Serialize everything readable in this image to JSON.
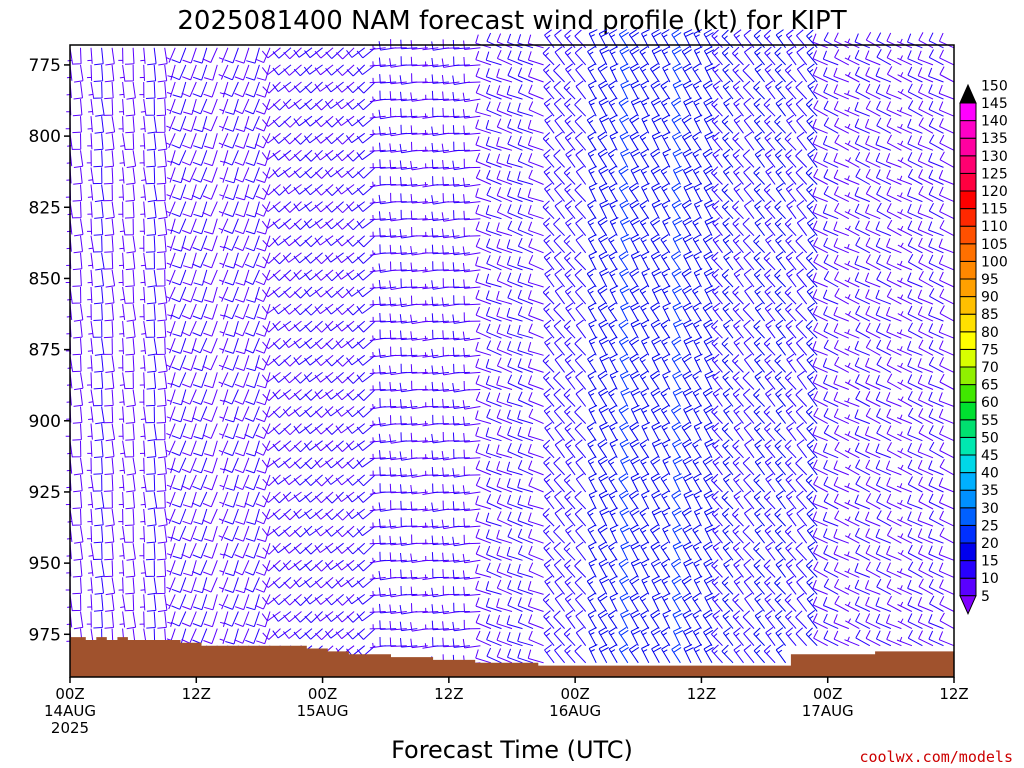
{
  "chart_data": {
    "type": "wind-barb-time-height",
    "title": "2025081400 NAM forecast wind profile (kt) for KIPT",
    "xlabel": "Forecast Time (UTC)",
    "credit": "coolwx.com/models",
    "y_axis": {
      "unit": "hPa",
      "range": [
        768,
        990
      ],
      "ticks": [
        775,
        800,
        825,
        850,
        875,
        900,
        925,
        950,
        975
      ]
    },
    "x_axis": {
      "unit": "forecast hour",
      "range": [
        0,
        84
      ],
      "ticks": [
        {
          "hour": 0,
          "lines": [
            "00Z",
            "14AUG",
            "2025"
          ]
        },
        {
          "hour": 12,
          "lines": [
            "12Z"
          ]
        },
        {
          "hour": 24,
          "lines": [
            "00Z",
            "15AUG"
          ]
        },
        {
          "hour": 36,
          "lines": [
            "12Z"
          ]
        },
        {
          "hour": 48,
          "lines": [
            "00Z",
            "16AUG"
          ]
        },
        {
          "hour": 60,
          "lines": [
            "12Z"
          ]
        },
        {
          "hour": 72,
          "lines": [
            "00Z",
            "17AUG"
          ]
        },
        {
          "hour": 84,
          "lines": [
            "12Z"
          ]
        }
      ]
    },
    "surface_pressure": [
      {
        "hour": 0,
        "p": 976
      },
      {
        "hour": 1.5,
        "p": 977
      },
      {
        "hour": 2.5,
        "p": 976
      },
      {
        "hour": 3.5,
        "p": 977
      },
      {
        "hour": 4.5,
        "p": 976
      },
      {
        "hour": 5.5,
        "p": 977
      },
      {
        "hour": 10.5,
        "p": 978
      },
      {
        "hour": 12.5,
        "p": 979
      },
      {
        "hour": 22.5,
        "p": 980
      },
      {
        "hour": 24.5,
        "p": 981
      },
      {
        "hour": 26.5,
        "p": 982
      },
      {
        "hour": 30.5,
        "p": 983
      },
      {
        "hour": 34.5,
        "p": 984
      },
      {
        "hour": 38.5,
        "p": 985
      },
      {
        "hour": 44.5,
        "p": 986
      },
      {
        "hour": 68.5,
        "p": 982
      },
      {
        "hour": 76.5,
        "p": 981
      },
      {
        "hour": 84,
        "p": 981
      }
    ],
    "colorbar": {
      "levels": [
        5,
        10,
        15,
        20,
        25,
        30,
        35,
        40,
        45,
        50,
        55,
        60,
        65,
        70,
        75,
        80,
        85,
        90,
        95,
        100,
        105,
        110,
        115,
        120,
        125,
        130,
        135,
        140,
        145,
        150
      ],
      "colors": [
        "#8000ff",
        "#5a00ff",
        "#2800ff",
        "#0000ee",
        "#0030ff",
        "#0060ff",
        "#0090ff",
        "#00b0ff",
        "#00d8e8",
        "#00e8b0",
        "#00e070",
        "#00e030",
        "#40e800",
        "#90f000",
        "#d8ff00",
        "#ffff00",
        "#ffe000",
        "#ffc000",
        "#ffa000",
        "#ff8800",
        "#ff7000",
        "#ff5000",
        "#ff2800",
        "#ff0000",
        "#ff0040",
        "#ff0070",
        "#ff00a0",
        "#ff00c8",
        "#ff00ff",
        "#000000"
      ]
    },
    "barbs": {
      "hour_step": 1,
      "levels": [
        769,
        775,
        781,
        787,
        793,
        799,
        805,
        811,
        817,
        823,
        829,
        835,
        841,
        847,
        853,
        859,
        865,
        871,
        877,
        883,
        889,
        895,
        901,
        907,
        913,
        919,
        925,
        931,
        937,
        943,
        949,
        955,
        961,
        967,
        973,
        979,
        985
      ],
      "regimes": [
        {
          "from_hour": 0,
          "to_hour": 10,
          "direction": 175,
          "speed": 8
        },
        {
          "from_hour": 10,
          "to_hour": 20,
          "direction": 200,
          "speed": 9
        },
        {
          "from_hour": 20,
          "to_hour": 30,
          "direction": 230,
          "speed": 10
        },
        {
          "from_hour": 30,
          "to_hour": 40,
          "direction": 265,
          "speed": 9
        },
        {
          "from_hour": 40,
          "to_hour": 46,
          "direction": 290,
          "speed": 10
        },
        {
          "from_hour": 46,
          "to_hour": 50,
          "direction": 320,
          "speed": 12
        },
        {
          "from_hour": 50,
          "to_hour": 62,
          "direction": 330,
          "speed": 18
        },
        {
          "from_hour": 62,
          "to_hour": 72,
          "direction": 320,
          "speed": 14
        },
        {
          "from_hour": 72,
          "to_hour": 85,
          "direction": 295,
          "speed": 9
        }
      ]
    }
  }
}
